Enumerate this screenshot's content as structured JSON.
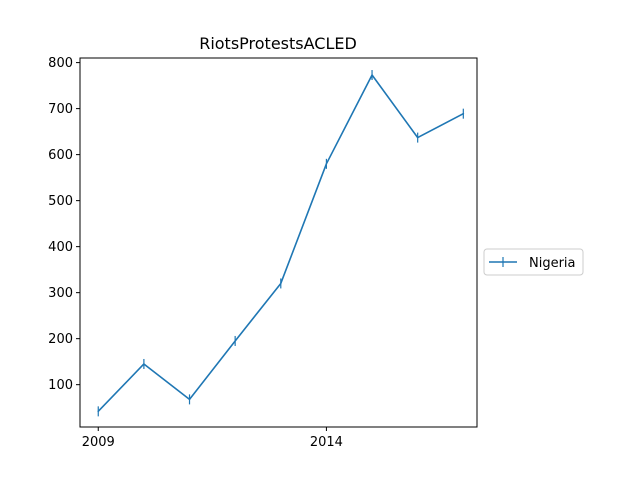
{
  "chart_data": {
    "type": "line",
    "title": "RiotsProtestsACLED",
    "xlabel": "",
    "ylabel": "",
    "x": [
      2009,
      2010,
      2011,
      2012,
      2013,
      2014,
      2015,
      2016,
      2017
    ],
    "xlim": [
      2008.6,
      2017.3
    ],
    "ylim": [
      8,
      810
    ],
    "x_ticks": [
      2009,
      2014
    ],
    "y_ticks": [
      100,
      200,
      300,
      400,
      500,
      600,
      700,
      800
    ],
    "grid": false,
    "legend": "outside-right",
    "series": [
      {
        "name": "Nigeria",
        "color": "#1f77b4",
        "marker": "vertical-tick",
        "values": [
          42,
          145,
          68,
          195,
          320,
          580,
          773,
          637,
          689
        ]
      }
    ]
  }
}
